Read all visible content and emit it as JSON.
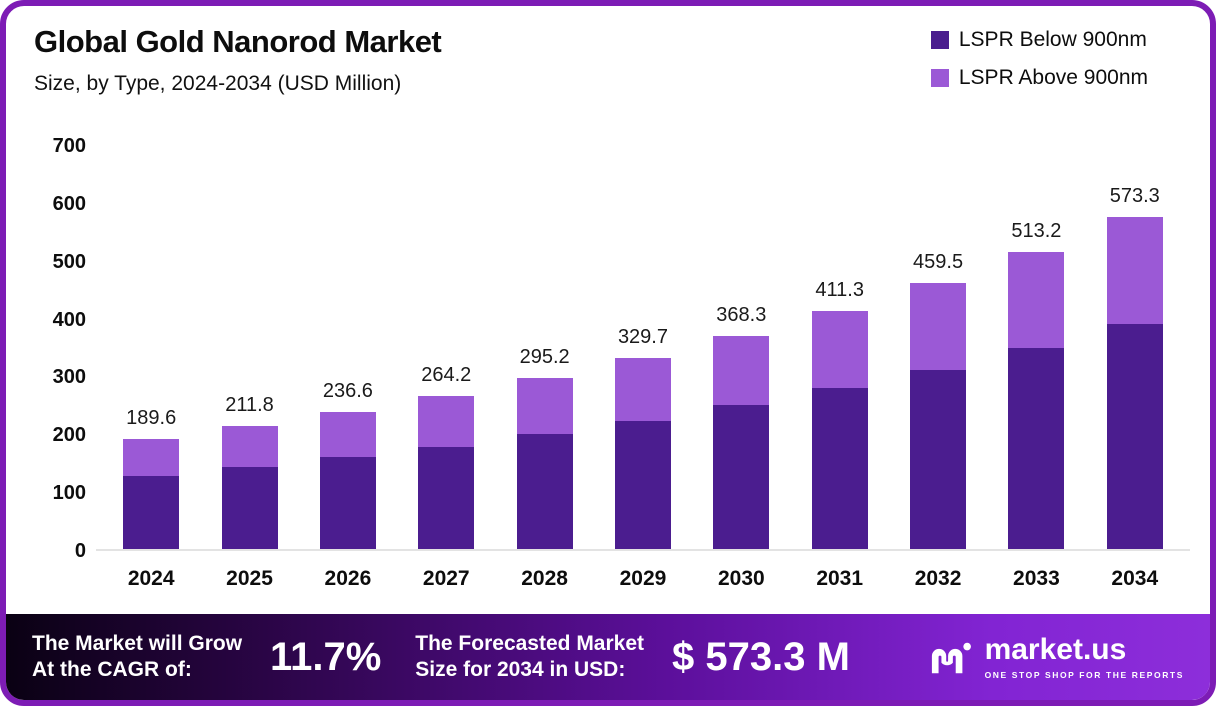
{
  "header": {
    "title": "Global Gold Nanorod Market",
    "subtitle": "Size, by Type, 2024-2034 (USD Million)"
  },
  "legend": [
    {
      "label": "LSPR Below 900nm",
      "color": "#4b1d8f"
    },
    {
      "label": "LSPR Above 900nm",
      "color": "#9b59d6"
    }
  ],
  "chart_data": {
    "type": "bar",
    "stacked": true,
    "title": "Global Gold Nanorod Market Size, by Type, 2024-2034 (USD Million)",
    "categories": [
      "2024",
      "2025",
      "2026",
      "2027",
      "2028",
      "2029",
      "2030",
      "2031",
      "2032",
      "2033",
      "2034"
    ],
    "series": [
      {
        "name": "LSPR Below 900nm",
        "color": "#4b1d8f",
        "values": [
          127.0,
          142.0,
          158.5,
          177.0,
          198.0,
          221.5,
          248.5,
          278.5,
          310.0,
          347.0,
          389.0
        ]
      },
      {
        "name": "LSPR Above 900nm",
        "color": "#9b59d6",
        "values": [
          62.6,
          69.8,
          78.1,
          87.2,
          97.2,
          108.2,
          119.8,
          132.8,
          149.5,
          166.2,
          184.3
        ]
      }
    ],
    "totals": [
      "189.6",
      "211.8",
      "236.6",
      "264.2",
      "295.2",
      "329.7",
      "368.3",
      "411.3",
      "459.5",
      "513.2",
      "573.3"
    ],
    "xlabel": "",
    "ylabel": "",
    "ylim": [
      0,
      700
    ],
    "yticks": [
      0,
      100,
      200,
      300,
      400,
      500,
      600,
      700
    ],
    "grid": false,
    "legend_position": "top-right"
  },
  "banner": {
    "cagr_label_line1": "The Market will Grow",
    "cagr_label_line2": "At the CAGR of:",
    "cagr_value": "11.7%",
    "forecast_label_line1": "The Forecasted Market",
    "forecast_label_line2": "Size for 2034 in USD:",
    "forecast_value": "$ 573.3 M",
    "brand_name": "market.us",
    "brand_tagline": "ONE STOP SHOP FOR THE REPORTS"
  },
  "colors": {
    "frame_border": "#7d1cb5",
    "series_below": "#4b1d8f",
    "series_above": "#9b59d6",
    "banner_gradient_start": "#0a0113",
    "banner_gradient_end": "#8d2eda"
  }
}
